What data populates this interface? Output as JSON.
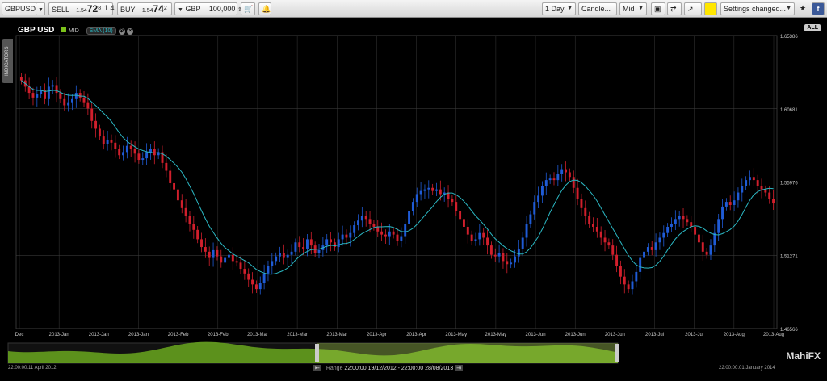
{
  "toolbar": {
    "symbol": "GBPUSD",
    "sell_label": "SELL",
    "sell_price_prefix": "1.54",
    "sell_price_big": "72",
    "sell_price_sup": "8",
    "spread": "1.4",
    "buy_label": "BUY",
    "buy_price_prefix": "1.54",
    "buy_price_big": "74",
    "buy_price_sup": "2",
    "currency": "GBP",
    "amount": "100,000",
    "interval": "1 Day",
    "chart_type": "Candle...",
    "price_type": "Mid",
    "settings": "Settings changed..."
  },
  "panel": {
    "title": "GBP USD",
    "mid_label": "MID",
    "sma_label": "SMA (10)",
    "indicators_tab": "INDICATORS",
    "all_label": "ALL"
  },
  "navigator": {
    "start_date": "22:00:00.11 April 2012",
    "end_date": "22:00:00.01 January 2014",
    "range_label": "Range",
    "range_value": "22:00:00 19/12/2012 - 22:00:00 28/08/2013"
  },
  "brand": "MahiFX",
  "colors": {
    "up": "#1f5bd6",
    "down": "#d11f2c",
    "sma": "#2bb8c4",
    "mid_badge": "#7cc21a",
    "nav_fill": "#6aa81e"
  },
  "chart_data": {
    "type": "candlestick",
    "y_ticks": [
      "1.65386",
      "1.60681",
      "1.55976",
      "1.51271",
      "1.46566"
    ],
    "ylim": [
      1.46566,
      1.65386
    ],
    "x_ticks": [
      "Dec",
      "2013-Jan",
      "2013-Jan",
      "2013-Jan",
      "2013-Feb",
      "2013-Feb",
      "2013-Mar",
      "2013-Mar",
      "2013-Mar",
      "2013-Apr",
      "2013-Apr",
      "2013-May",
      "2013-May",
      "2013-Jun",
      "2013-Jun",
      "2013-Jun",
      "2013-Jul",
      "2013-Jul",
      "2013-Aug",
      "2013-Aug"
    ],
    "close": [
      1.625,
      1.621,
      1.617,
      1.614,
      1.616,
      1.619,
      1.613,
      1.621,
      1.622,
      1.617,
      1.613,
      1.609,
      1.611,
      1.613,
      1.617,
      1.614,
      1.611,
      1.607,
      1.599,
      1.594,
      1.589,
      1.584,
      1.587,
      1.585,
      1.581,
      1.577,
      1.579,
      1.583,
      1.581,
      1.578,
      1.574,
      1.575,
      1.579,
      1.581,
      1.577,
      1.579,
      1.572,
      1.567,
      1.559,
      1.555,
      1.548,
      1.543,
      1.538,
      1.533,
      1.529,
      1.523,
      1.518,
      1.515,
      1.511,
      1.516,
      1.512,
      1.508,
      1.511,
      1.513,
      1.509,
      1.508,
      1.504,
      1.501,
      1.497,
      1.494,
      1.491,
      1.495,
      1.501,
      1.506,
      1.509,
      1.512,
      1.514,
      1.511,
      1.513,
      1.515,
      1.521,
      1.518,
      1.517,
      1.523,
      1.519,
      1.514,
      1.516,
      1.519,
      1.523,
      1.521,
      1.518,
      1.523,
      1.526,
      1.524,
      1.527,
      1.532,
      1.535,
      1.538,
      1.536,
      1.533,
      1.531,
      1.528,
      1.526,
      1.525,
      1.528,
      1.526,
      1.522,
      1.525,
      1.533,
      1.541,
      1.547,
      1.552,
      1.554,
      1.555,
      1.556,
      1.554,
      1.555,
      1.552,
      1.553,
      1.549,
      1.547,
      1.541,
      1.536,
      1.531,
      1.526,
      1.522,
      1.523,
      1.527,
      1.524,
      1.519,
      1.513,
      1.512,
      1.514,
      1.509,
      1.507,
      1.508,
      1.512,
      1.517,
      1.524,
      1.533,
      1.539,
      1.547,
      1.551,
      1.557,
      1.561,
      1.562,
      1.561,
      1.565,
      1.568,
      1.566,
      1.563,
      1.556,
      1.549,
      1.543,
      1.538,
      1.533,
      1.531,
      1.528,
      1.524,
      1.521,
      1.519,
      1.513,
      1.506,
      1.499,
      1.494,
      1.491,
      1.496,
      1.502,
      1.511,
      1.515,
      1.518,
      1.516,
      1.521,
      1.524,
      1.527,
      1.531,
      1.533,
      1.536,
      1.538,
      1.536,
      1.534,
      1.531,
      1.526,
      1.521,
      1.515,
      1.513,
      1.519,
      1.527,
      1.536,
      1.544,
      1.547,
      1.545,
      1.548,
      1.553,
      1.557,
      1.561,
      1.563,
      1.561,
      1.557,
      1.555,
      1.553,
      1.549,
      1.546
    ],
    "sma_period": 10
  }
}
